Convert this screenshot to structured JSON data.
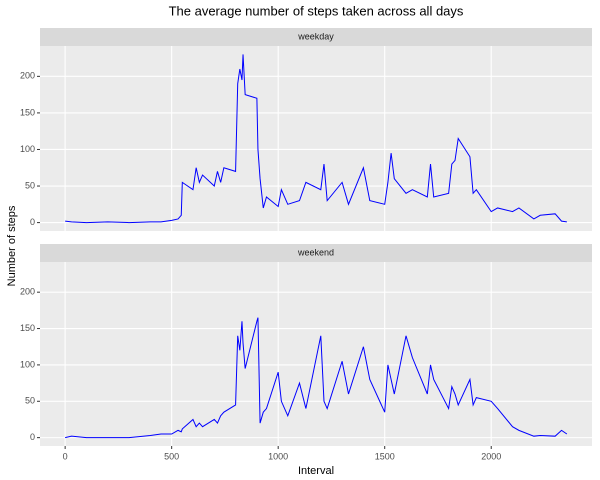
{
  "chart_data": {
    "type": "line",
    "title": "The average number of steps taken across all days",
    "xlabel": "Interval",
    "ylabel": "Number of steps",
    "facet": true,
    "grid": true,
    "xlim": [
      -118,
      2473
    ],
    "ylim": [
      -11.5,
      241.5
    ],
    "xticks": [
      0,
      500,
      1000,
      1500,
      2000
    ],
    "yticks": [
      0,
      50,
      100,
      150,
      200
    ],
    "x": [
      0,
      30,
      100,
      200,
      300,
      400,
      450,
      500,
      530,
      545,
      550,
      600,
      615,
      630,
      645,
      700,
      715,
      730,
      745,
      800,
      810,
      820,
      830,
      835,
      845,
      900,
      905,
      915,
      930,
      945,
      1000,
      1015,
      1045,
      1100,
      1130,
      1200,
      1215,
      1230,
      1300,
      1330,
      1400,
      1430,
      1500,
      1515,
      1530,
      1545,
      1600,
      1630,
      1700,
      1715,
      1730,
      1800,
      1815,
      1830,
      1845,
      1900,
      1915,
      1930,
      2000,
      2030,
      2100,
      2130,
      2200,
      2230,
      2300,
      2330,
      2355
    ],
    "series": [
      {
        "name": "weekday",
        "color": "#0000ff",
        "values": [
          2,
          1,
          0,
          1,
          0,
          1,
          1,
          3,
          5,
          10,
          55,
          45,
          75,
          55,
          65,
          50,
          70,
          55,
          75,
          70,
          190,
          210,
          195,
          230,
          175,
          170,
          100,
          60,
          20,
          35,
          22,
          45,
          25,
          30,
          55,
          45,
          80,
          30,
          55,
          25,
          75,
          30,
          25,
          55,
          95,
          60,
          40,
          45,
          35,
          80,
          35,
          40,
          80,
          85,
          115,
          90,
          40,
          45,
          15,
          20,
          15,
          20,
          5,
          10,
          12,
          2,
          1
        ]
      },
      {
        "name": "weekend",
        "color": "#0000ff",
        "values": [
          0,
          2,
          0,
          0,
          0,
          3,
          5,
          5,
          10,
          8,
          12,
          25,
          15,
          20,
          15,
          25,
          20,
          30,
          35,
          45,
          140,
          120,
          160,
          130,
          95,
          160,
          165,
          20,
          35,
          40,
          90,
          50,
          30,
          75,
          40,
          140,
          50,
          40,
          105,
          60,
          125,
          80,
          35,
          100,
          80,
          60,
          140,
          110,
          60,
          100,
          80,
          40,
          70,
          60,
          45,
          80,
          45,
          55,
          50,
          40,
          15,
          10,
          2,
          3,
          2,
          10,
          5
        ]
      }
    ]
  }
}
